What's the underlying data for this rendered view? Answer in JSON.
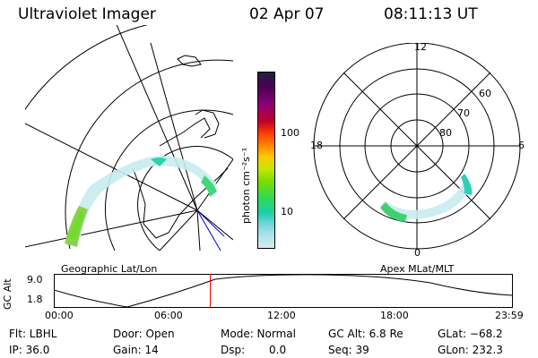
{
  "header": {
    "title": "Ultraviolet Imager",
    "date": "02 Apr 07",
    "time": "08:11:13 UT"
  },
  "colorbar": {
    "label": "photon cm⁻²s⁻¹",
    "ticks": [
      "100",
      "10"
    ],
    "colors": [
      "#202040",
      "#4b0055",
      "#8a0078",
      "#c2002a",
      "#ff4000",
      "#ff8a00",
      "#ffc800",
      "#c6e600",
      "#7bdc00",
      "#2ed85a",
      "#1ccfa8",
      "#6fd4dc",
      "#a7e1e8",
      "#d8ecf0"
    ]
  },
  "maps": {
    "left_label": "Geographic Lat/Lon",
    "right_label": "Apex MLat/MLT",
    "mlt_labels": {
      "top": "12",
      "left": "18",
      "right": "6",
      "bottom": "0"
    },
    "mlat_labels": [
      "60",
      "70",
      "80"
    ]
  },
  "timeline": {
    "ylabel": "GC Alt",
    "ymax": "9.0",
    "ymin": "1.8",
    "xticks": [
      "00:00",
      "06:00",
      "12:00",
      "18:00",
      "23:59"
    ],
    "current_fraction": 0.34,
    "marker_color": "#ff0000"
  },
  "info": {
    "filter": "Flt: LBHL",
    "ip": "IP: 36.0",
    "door": "Door: Open",
    "gain": "Gain: 14",
    "mode": "Mode: Normal",
    "dsp_label": "Dsp:",
    "dsp_value": "0.0",
    "gc_alt": "GC Alt: 6.8 Re",
    "seq": "Seq: 39",
    "glat": "GLat: −68.2",
    "glon": "GLon: 232.3"
  }
}
